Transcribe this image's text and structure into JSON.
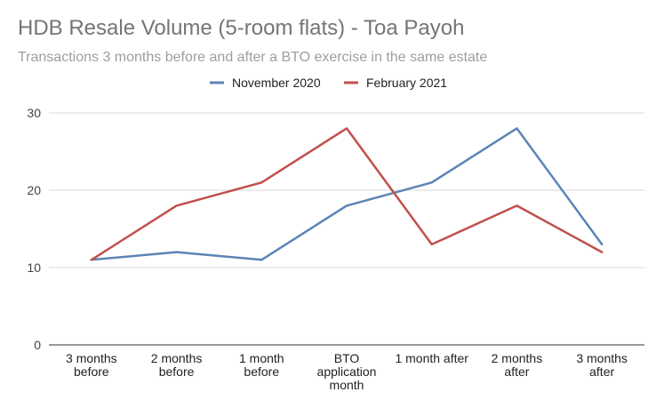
{
  "chart_data": {
    "type": "line",
    "title": "HDB Resale Volume (5-room flats) - Toa Payoh",
    "subtitle": "Transactions 3 months before and after a BTO exercise in the same estate",
    "xlabel": "",
    "ylabel": "",
    "ylim": [
      0,
      30
    ],
    "yticks": [
      0,
      10,
      20,
      30
    ],
    "legend_position": "top-center",
    "categories": [
      [
        "3 months",
        "before"
      ],
      [
        "2 months",
        "before"
      ],
      [
        "1 month",
        "before"
      ],
      [
        "BTO",
        "application",
        "month"
      ],
      [
        "1 month after"
      ],
      [
        "2 months",
        "after"
      ],
      [
        "3 months",
        "after"
      ]
    ],
    "series": [
      {
        "name": "November 2020",
        "color": "#5b85b6",
        "values": [
          11,
          12,
          11,
          18,
          21,
          28,
          13
        ]
      },
      {
        "name": "February 2021",
        "color": "#c0504d",
        "values": [
          11,
          18,
          21,
          28,
          13,
          18,
          12
        ]
      }
    ]
  }
}
